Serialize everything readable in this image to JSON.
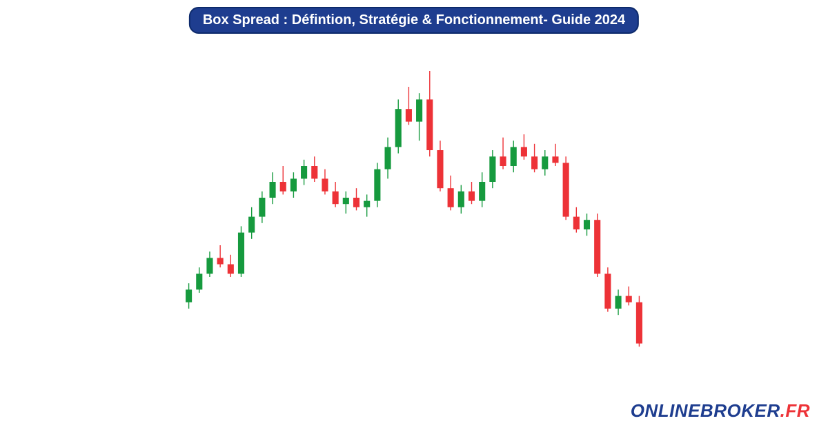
{
  "title": "Box Spread : Défintion, Stratégie & Fonctionnement- Guide 2024",
  "brand": {
    "part1": "ONLINEBROKER",
    "part2": ".FR"
  },
  "colors": {
    "title_bg": "#1e3d8f",
    "title_border": "#0d2a6b",
    "title_text": "#ffffff",
    "bull": "#169a3e",
    "bear": "#ed3237",
    "brand1": "#1e3d8f",
    "brand2": "#ed3237",
    "background": "#ffffff"
  },
  "chart": {
    "type": "candlestick",
    "yrange": [
      0,
      100
    ],
    "candle_width_ratio": 0.6,
    "wick_width": 1.4,
    "candles": [
      {
        "o": 22,
        "h": 28,
        "l": 20,
        "c": 26
      },
      {
        "o": 26,
        "h": 33,
        "l": 25,
        "c": 31
      },
      {
        "o": 31,
        "h": 38,
        "l": 30,
        "c": 36
      },
      {
        "o": 36,
        "h": 40,
        "l": 33,
        "c": 34
      },
      {
        "o": 34,
        "h": 37,
        "l": 30,
        "c": 31
      },
      {
        "o": 31,
        "h": 46,
        "l": 30,
        "c": 44
      },
      {
        "o": 44,
        "h": 52,
        "l": 42,
        "c": 49
      },
      {
        "o": 49,
        "h": 57,
        "l": 47,
        "c": 55
      },
      {
        "o": 55,
        "h": 63,
        "l": 53,
        "c": 60
      },
      {
        "o": 60,
        "h": 65,
        "l": 56,
        "c": 57
      },
      {
        "o": 57,
        "h": 63,
        "l": 55,
        "c": 61
      },
      {
        "o": 61,
        "h": 67,
        "l": 59,
        "c": 65
      },
      {
        "o": 65,
        "h": 68,
        "l": 60,
        "c": 61
      },
      {
        "o": 61,
        "h": 64,
        "l": 56,
        "c": 57
      },
      {
        "o": 57,
        "h": 60,
        "l": 52,
        "c": 53
      },
      {
        "o": 53,
        "h": 57,
        "l": 50,
        "c": 55
      },
      {
        "o": 55,
        "h": 58,
        "l": 51,
        "c": 52
      },
      {
        "o": 52,
        "h": 56,
        "l": 49,
        "c": 54
      },
      {
        "o": 54,
        "h": 66,
        "l": 52,
        "c": 64
      },
      {
        "o": 64,
        "h": 74,
        "l": 61,
        "c": 71
      },
      {
        "o": 71,
        "h": 86,
        "l": 69,
        "c": 83
      },
      {
        "o": 83,
        "h": 90,
        "l": 78,
        "c": 79
      },
      {
        "o": 79,
        "h": 88,
        "l": 73,
        "c": 86
      },
      {
        "o": 86,
        "h": 95,
        "l": 68,
        "c": 70
      },
      {
        "o": 70,
        "h": 73,
        "l": 57,
        "c": 58
      },
      {
        "o": 58,
        "h": 62,
        "l": 51,
        "c": 52
      },
      {
        "o": 52,
        "h": 59,
        "l": 50,
        "c": 57
      },
      {
        "o": 57,
        "h": 60,
        "l": 53,
        "c": 54
      },
      {
        "o": 54,
        "h": 63,
        "l": 52,
        "c": 60
      },
      {
        "o": 60,
        "h": 70,
        "l": 58,
        "c": 68
      },
      {
        "o": 68,
        "h": 74,
        "l": 64,
        "c": 65
      },
      {
        "o": 65,
        "h": 73,
        "l": 63,
        "c": 71
      },
      {
        "o": 71,
        "h": 75,
        "l": 67,
        "c": 68
      },
      {
        "o": 68,
        "h": 72,
        "l": 63,
        "c": 64
      },
      {
        "o": 64,
        "h": 70,
        "l": 62,
        "c": 68
      },
      {
        "o": 68,
        "h": 72,
        "l": 65,
        "c": 66
      },
      {
        "o": 66,
        "h": 68,
        "l": 48,
        "c": 49
      },
      {
        "o": 49,
        "h": 52,
        "l": 44,
        "c": 45
      },
      {
        "o": 45,
        "h": 50,
        "l": 43,
        "c": 48
      },
      {
        "o": 48,
        "h": 50,
        "l": 30,
        "c": 31
      },
      {
        "o": 31,
        "h": 33,
        "l": 19,
        "c": 20
      },
      {
        "o": 20,
        "h": 26,
        "l": 18,
        "c": 24
      },
      {
        "o": 24,
        "h": 27,
        "l": 21,
        "c": 22
      },
      {
        "o": 22,
        "h": 24,
        "l": 8,
        "c": 9
      }
    ]
  }
}
